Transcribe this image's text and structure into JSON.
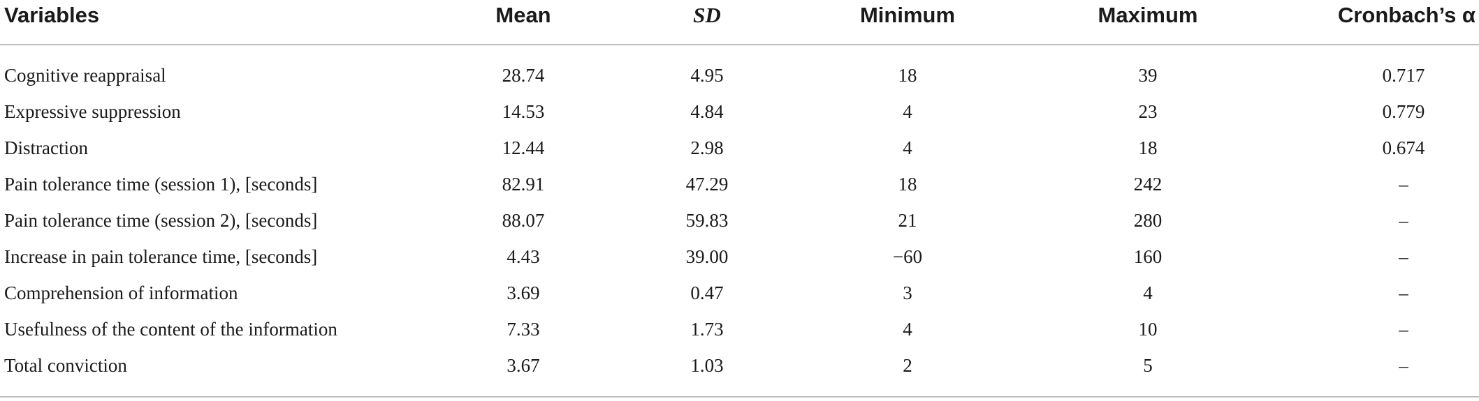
{
  "table": {
    "headers": {
      "variables": "Variables",
      "mean": "Mean",
      "sd": "SD",
      "minimum": "Minimum",
      "maximum": "Maximum",
      "alpha": "Cronbach’s α"
    },
    "rows": [
      {
        "variable": "Cognitive reappraisal",
        "mean": "28.74",
        "sd": "4.95",
        "min": "18",
        "max": "39",
        "alpha": "0.717"
      },
      {
        "variable": "Expressive suppression",
        "mean": "14.53",
        "sd": "4.84",
        "min": "4",
        "max": "23",
        "alpha": "0.779"
      },
      {
        "variable": "Distraction",
        "mean": "12.44",
        "sd": "2.98",
        "min": "4",
        "max": "18",
        "alpha": "0.674"
      },
      {
        "variable": "Pain tolerance time (session 1), [seconds]",
        "mean": "82.91",
        "sd": "47.29",
        "min": "18",
        "max": "242",
        "alpha": "–"
      },
      {
        "variable": "Pain tolerance time (session 2), [seconds]",
        "mean": "88.07",
        "sd": "59.83",
        "min": "21",
        "max": "280",
        "alpha": "–"
      },
      {
        "variable": "Increase in pain tolerance time, [seconds]",
        "mean": "4.43",
        "sd": "39.00",
        "min": "−60",
        "max": "160",
        "alpha": "–"
      },
      {
        "variable": "Comprehension of information",
        "mean": "3.69",
        "sd": "0.47",
        "min": "3",
        "max": "4",
        "alpha": "–"
      },
      {
        "variable": "Usefulness of the content of the information",
        "mean": "7.33",
        "sd": "1.73",
        "min": "4",
        "max": "10",
        "alpha": "–"
      },
      {
        "variable": "Total conviction",
        "mean": "3.67",
        "sd": "1.03",
        "min": "2",
        "max": "5",
        "alpha": "–"
      }
    ]
  }
}
